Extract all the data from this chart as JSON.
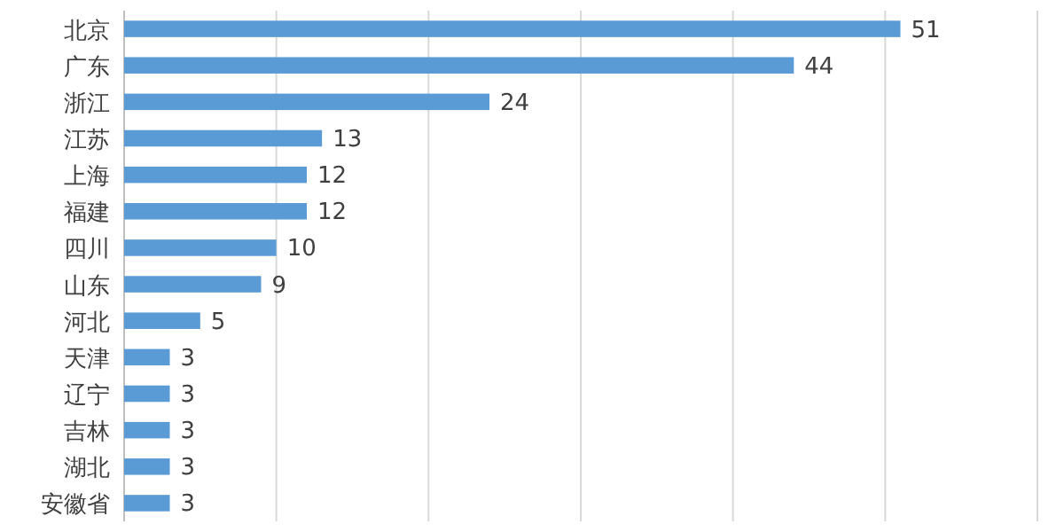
{
  "chart_data": {
    "type": "bar",
    "orientation": "horizontal",
    "categories": [
      "北京",
      "广东",
      "浙江",
      "江苏",
      "上海",
      "福建",
      "四川",
      "山东",
      "河北",
      "天津",
      "辽宁",
      "吉林",
      "湖北",
      "安徽省"
    ],
    "values": [
      51,
      44,
      24,
      13,
      12,
      12,
      10,
      9,
      5,
      3,
      3,
      3,
      3,
      3
    ],
    "color": "#5b9bd5",
    "xlim": [
      0,
      60
    ],
    "xticks": [
      {
        "value": 0,
        "label": null
      },
      {
        "value": 10,
        "label": null
      },
      {
        "value": 20,
        "label": null
      },
      {
        "value": 30,
        "label": null
      },
      {
        "value": 40,
        "label": null
      },
      {
        "value": 50,
        "label": null
      },
      {
        "value": 60,
        "label": null
      }
    ],
    "grid": "x",
    "tick_labels": "y",
    "data_labels": true
  }
}
